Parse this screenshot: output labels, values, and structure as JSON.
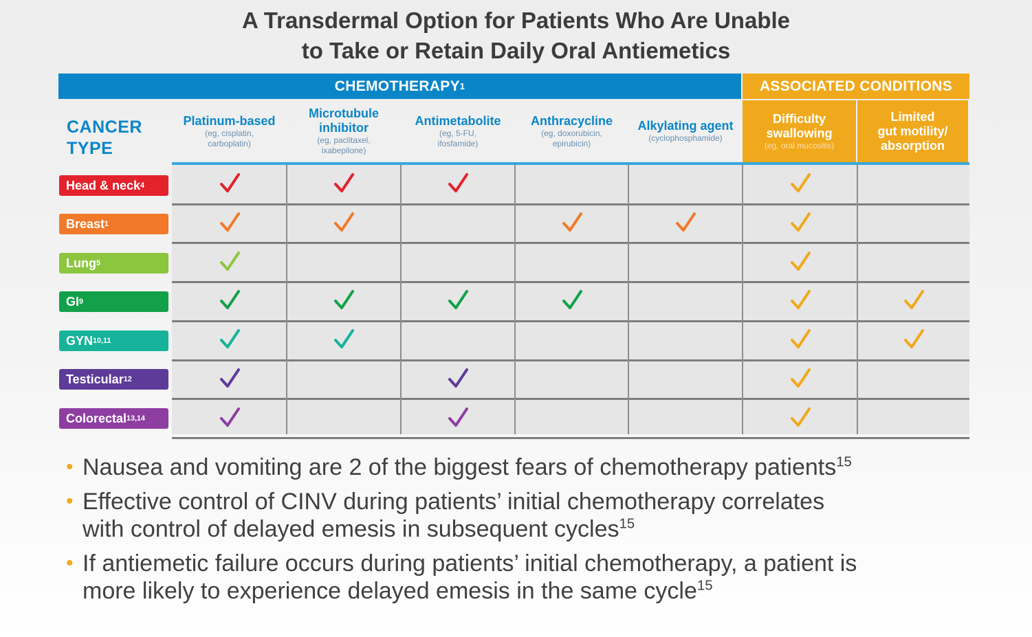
{
  "title": {
    "line1": "A Transdermal Option for Patients Who Are Unable",
    "line2": "to Take or Retain Daily Oral Antiemetics"
  },
  "bands": {
    "chemotherapy": "CHEMOTHERAPY",
    "chemotherapy_ref": "1",
    "associated": "ASSOCIATED CONDITIONS"
  },
  "cancer_type_label_1": "CANCER",
  "cancer_type_label_2": "TYPE",
  "columns": [
    {
      "name_1": "Platinum-based",
      "name_2": "",
      "sub_1": "(eg, cisplatin,",
      "sub_2": "carboplatin)",
      "sub_3": ""
    },
    {
      "name_1": "Microtubule",
      "name_2": "inhibitor",
      "sub_1": "(eg, paclitaxel,",
      "sub_2": "ixabepilone)",
      "sub_3": ""
    },
    {
      "name_1": "Antimetabolite",
      "name_2": "",
      "sub_1": "(eg, 5-FU,",
      "sub_2": "ifosfamide)",
      "sub_3": ""
    },
    {
      "name_1": "Anthracycline",
      "name_2": "",
      "sub_1": "(eg, doxorubicin,",
      "sub_2": "epirubicin)",
      "sub_3": ""
    },
    {
      "name_1": "Alkylating agent",
      "name_2": "",
      "sub_1": "(cyclophosphamide)",
      "sub_2": "",
      "sub_3": ""
    },
    {
      "name_1": "Difficulty",
      "name_2": "swallowing",
      "sub_1": "(eg, oral mucositis)",
      "sub_2": "",
      "sub_3": ""
    },
    {
      "name_1": "Limited",
      "name_2": "gut motility/",
      "name_3": "absorption",
      "sub_1": "",
      "sub_2": "",
      "sub_3": ""
    }
  ],
  "rows": [
    {
      "label": "Head & neck",
      "ref": "4",
      "color": "#e3222c",
      "checks": [
        1,
        1,
        1,
        0,
        0,
        1,
        0
      ]
    },
    {
      "label": "Breast",
      "ref": "1",
      "color": "#f07a2a",
      "checks": [
        1,
        1,
        0,
        1,
        1,
        1,
        0
      ]
    },
    {
      "label": "Lung",
      "ref": "5",
      "color": "#8cc63e",
      "checks": [
        1,
        0,
        0,
        0,
        0,
        1,
        0
      ]
    },
    {
      "label": "GI",
      "ref": "9",
      "color": "#12a14a",
      "checks": [
        1,
        1,
        1,
        1,
        0,
        1,
        1
      ]
    },
    {
      "label": "GYN",
      "ref": "10,11",
      "color": "#16b39a",
      "checks": [
        1,
        1,
        0,
        0,
        0,
        1,
        1
      ]
    },
    {
      "label": "Testicular",
      "ref": "12",
      "color": "#5d3b99",
      "checks": [
        1,
        0,
        1,
        0,
        0,
        1,
        0
      ]
    },
    {
      "label": "Colorectal",
      "ref": "13,14",
      "color": "#8e3ea1",
      "checks": [
        1,
        0,
        1,
        0,
        0,
        1,
        0
      ]
    }
  ],
  "check_color_assoc": "#f0a91c",
  "bullets": [
    {
      "line1": "Nausea and vomiting are 2 of the biggest fears of chemotherapy patients",
      "line2": "",
      "ref": "15"
    },
    {
      "line1": "Effective control of CINV during patients’ initial chemotherapy correlates",
      "line2": "with control of delayed emesis in subsequent cycles",
      "ref": "15"
    },
    {
      "line1": "If antiemetic failure occurs during patients’ initial chemotherapy, a patient is",
      "line2": "more likely to experience delayed emesis in the same cycle",
      "ref": "15"
    }
  ]
}
